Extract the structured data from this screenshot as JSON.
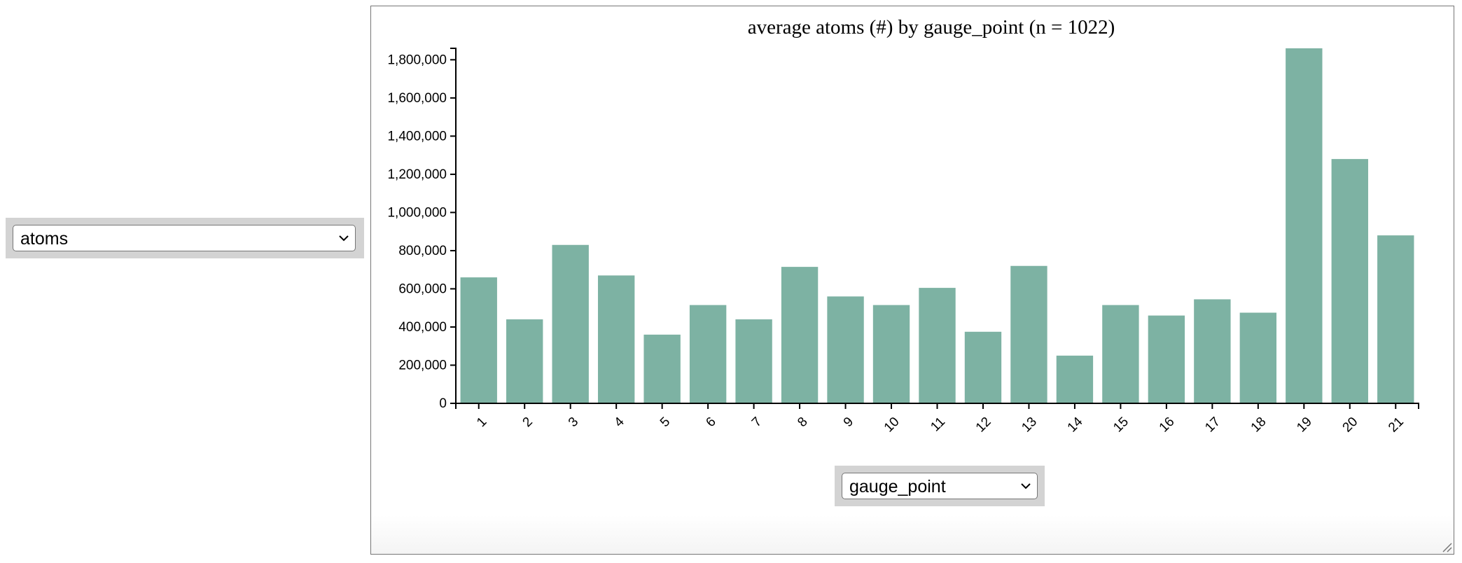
{
  "y_selector": {
    "value": "atoms",
    "icon": "chevron-down-icon"
  },
  "x_selector": {
    "value": "gauge_point",
    "icon": "chevron-down-icon"
  },
  "colors": {
    "bar": "#7db2a3",
    "axis": "#000000",
    "panel_border": "#767676",
    "select_bg": "#d3d3d3"
  },
  "chart_data": {
    "type": "bar",
    "title": "average atoms (#) by gauge_point (n = 1022)",
    "xlabel": "",
    "ylabel": "",
    "categories": [
      "1",
      "2",
      "3",
      "4",
      "5",
      "6",
      "7",
      "8",
      "9",
      "10",
      "11",
      "12",
      "13",
      "14",
      "15",
      "16",
      "17",
      "18",
      "19",
      "20",
      "21"
    ],
    "values": [
      660000,
      440000,
      830000,
      670000,
      360000,
      515000,
      440000,
      715000,
      560000,
      515000,
      605000,
      375000,
      720000,
      250000,
      515000,
      460000,
      545000,
      475000,
      1860000,
      1280000,
      880000
    ],
    "ylim": [
      0,
      1860000
    ],
    "yticks": [
      0,
      200000,
      400000,
      600000,
      800000,
      1000000,
      1200000,
      1400000,
      1600000,
      1800000
    ],
    "ytick_labels": [
      "0",
      "200,000",
      "400,000",
      "600,000",
      "800,000",
      "1,000,000",
      "1,200,000",
      "1,400,000",
      "1,600,000",
      "1,800,000"
    ],
    "grid": false,
    "legend": "none"
  }
}
